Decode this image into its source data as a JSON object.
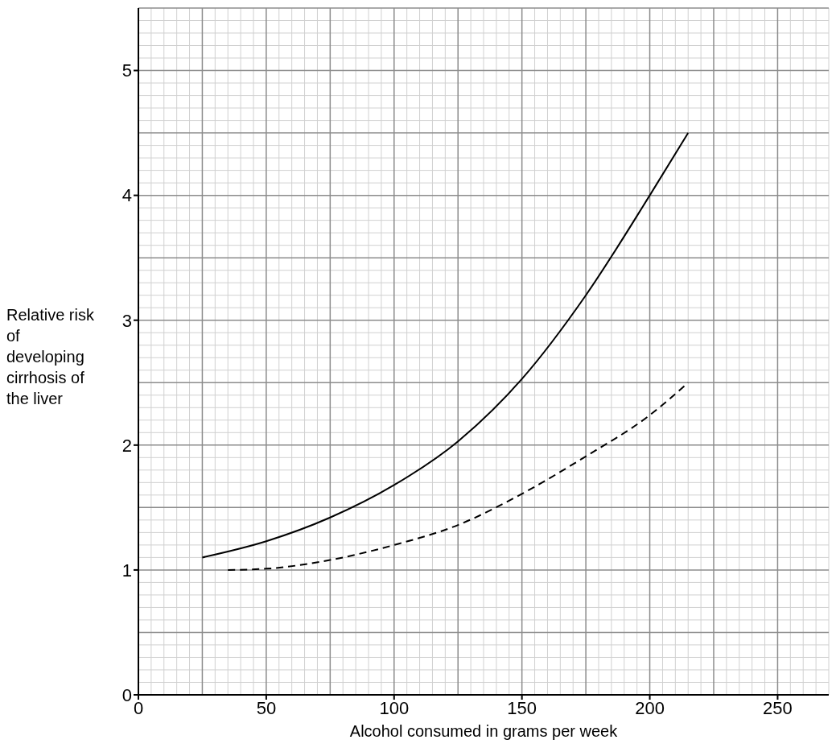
{
  "chart_data": {
    "type": "line",
    "xlabel": "Alcohol consumed in grams per week",
    "ylabel": "Relative risk of developing cirrhosis of the liver",
    "xlim": [
      0,
      270
    ],
    "ylim": [
      0,
      5.5
    ],
    "xticks": [
      0,
      50,
      100,
      150,
      200,
      250
    ],
    "yticks": [
      0,
      1,
      2,
      3,
      4,
      5
    ],
    "grid": true,
    "marker": "none",
    "series": [
      {
        "color": "#000000",
        "line_style": "solid",
        "x": [
          25,
          50,
          75,
          100,
          125,
          150,
          175,
          200,
          215
        ],
        "values": [
          1.1,
          1.23,
          1.42,
          1.68,
          2.03,
          2.53,
          3.2,
          4.0,
          4.5
        ]
      },
      {
        "color": "#000000",
        "line_style": "dashed",
        "x": [
          35,
          50,
          75,
          100,
          125,
          150,
          175,
          200,
          215
        ],
        "values": [
          1.0,
          1.01,
          1.08,
          1.2,
          1.36,
          1.61,
          1.91,
          2.24,
          2.5
        ]
      }
    ]
  }
}
